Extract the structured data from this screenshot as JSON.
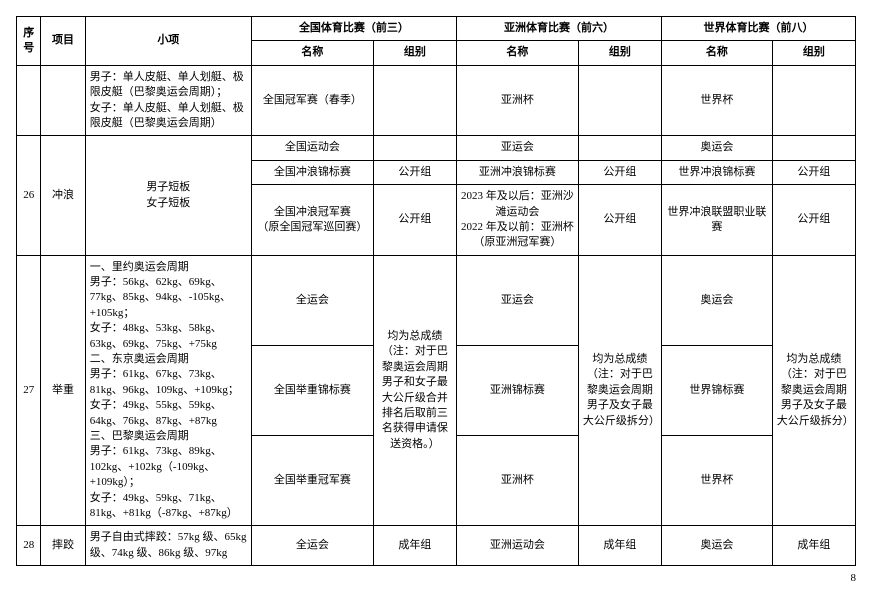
{
  "page_number": "8",
  "header": {
    "seq": "序号",
    "project": "项目",
    "sub": "小项",
    "nat_group": "全国体育比赛（前三）",
    "asia_group": "亚洲体育比赛（前六）",
    "world_group": "世界体育比赛（前八）",
    "name": "名称",
    "grp": "组别"
  },
  "rows": {
    "r0": {
      "sub": "男子：单人皮艇、单人划艇、极限皮艇（巴黎奥运会周期）；\n女子：单人皮艇、单人划艇、极限皮艇（巴黎奥运会周期）",
      "nat_name": "全国冠军赛（春季）",
      "nat_grp": "",
      "asia_name": "亚洲杯",
      "asia_grp": "",
      "world_name": "世界杯",
      "world_grp": ""
    },
    "r26": {
      "seq": "26",
      "project": "冲浪",
      "sub": "男子短板\n女子短板",
      "a": {
        "nat_name": "全国运动会",
        "nat_grp": "",
        "asia_name": "亚运会",
        "asia_grp": "",
        "world_name": "奥运会",
        "world_grp": ""
      },
      "b": {
        "nat_name": "全国冲浪锦标赛",
        "nat_grp": "公开组",
        "asia_name": "亚洲冲浪锦标赛",
        "asia_grp": "公开组",
        "world_name": "世界冲浪锦标赛",
        "world_grp": "公开组"
      },
      "c": {
        "nat_name": "全国冲浪冠军赛\n（原全国冠军巡回赛）",
        "nat_grp": "公开组",
        "asia_name": "2023 年及以后：亚洲沙滩运动会\n2022 年及以前：亚洲杯（原亚洲冠军赛）",
        "asia_grp": "公开组",
        "world_name": "世界冲浪联盟职业联赛",
        "world_grp": "公开组"
      }
    },
    "r27": {
      "seq": "27",
      "project": "举重",
      "sub": "一、里约奥运会周期\n男子：56kg、62kg、69kg、77kg、85kg、94kg、-105kg、+105kg；\n女子：48kg、53kg、58kg、63kg、69kg、75kg、+75kg\n二、东京奥运会周期\n男子：61kg、67kg、73kg、81kg、96kg、109kg、+109kg；\n女子：49kg、55kg、59kg、64kg、76kg、87kg、+87kg\n三、巴黎奥运会周期\n男子：61kg、73kg、89kg、102kg、+102kg（-109kg、+109kg）；\n女子：49kg、59kg、71kg、81kg、+81kg（-87kg、+87kg）",
      "nat_grp": "均为总成绩（注：对于巴黎奥运会周期男子和女子最大公斤级合并排名后取前三名获得申请保送资格。）",
      "asia_grp": "均为总成绩（注：对于巴黎奥运会周期男子及女子最大公斤级拆分）",
      "world_grp": "均为总成绩（注：对于巴黎奥运会周期男子及女子最大公斤级拆分）",
      "a": {
        "nat_name": "全运会",
        "asia_name": "亚运会",
        "world_name": "奥运会"
      },
      "b": {
        "nat_name": "全国举重锦标赛",
        "asia_name": "亚洲锦标赛",
        "world_name": "世界锦标赛"
      },
      "c": {
        "nat_name": "全国举重冠军赛",
        "asia_name": "亚洲杯",
        "world_name": "世界杯"
      }
    },
    "r28": {
      "seq": "28",
      "project": "摔跤",
      "sub": "男子自由式摔跤：57kg 级、65kg 级、74kg 级、86kg 级、97kg",
      "nat_name": "全运会",
      "nat_grp": "成年组",
      "asia_name": "亚洲运动会",
      "asia_grp": "成年组",
      "world_name": "奥运会",
      "world_grp": "成年组"
    }
  }
}
